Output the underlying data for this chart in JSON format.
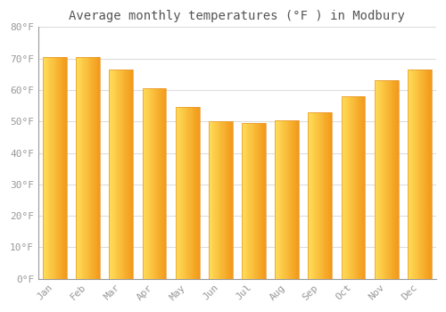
{
  "title": "Average monthly temperatures (°F ) in Modbury",
  "months": [
    "Jan",
    "Feb",
    "Mar",
    "Apr",
    "May",
    "Jun",
    "Jul",
    "Aug",
    "Sep",
    "Oct",
    "Nov",
    "Dec"
  ],
  "values": [
    70.5,
    70.5,
    66.5,
    60.5,
    54.5,
    50.0,
    49.5,
    50.5,
    53.0,
    58.0,
    63.0,
    66.5
  ],
  "bar_color_left": "#FFCC44",
  "bar_color_right": "#F5A623",
  "bar_edge_color": "#E8962A",
  "background_color": "#FFFFFF",
  "grid_color": "#DDDDDD",
  "ylim": [
    0,
    80
  ],
  "ytick_step": 10,
  "title_fontsize": 10,
  "tick_fontsize": 8,
  "tick_font_color": "#999999",
  "title_font_color": "#555555",
  "spine_color": "#999999"
}
